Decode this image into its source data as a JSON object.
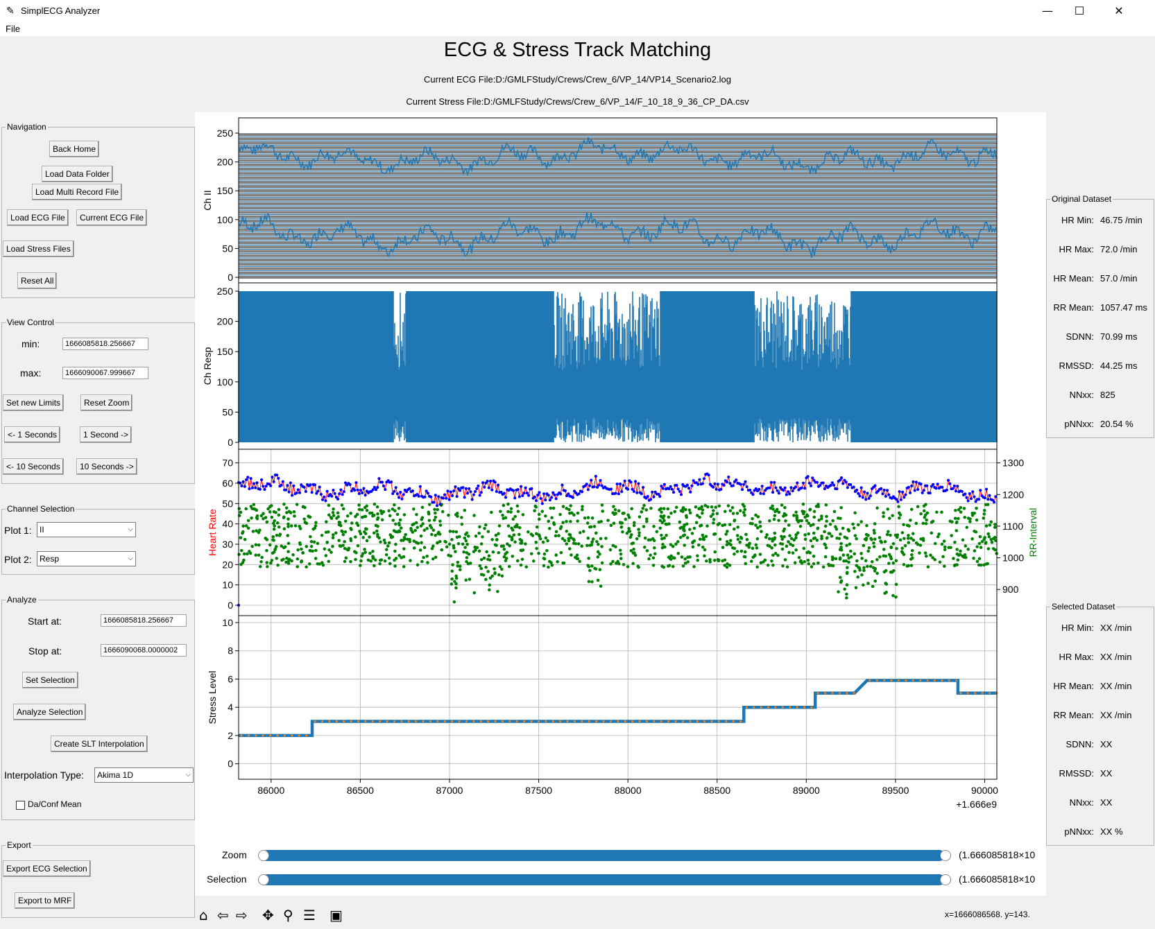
{
  "window": {
    "title": "SimplECG Analyzer",
    "minimize": "—",
    "maximize": "☐",
    "close": "✕"
  },
  "menu": {
    "file": "File"
  },
  "header": {
    "title": "ECG & Stress Track Matching",
    "ecg_file": "Current ECG File:D:/GMLFStudy/Crews/Crew_6/VP_14/VP14_Scenario2.log",
    "stress_file": "Current Stress File:D:/GMLFStudy/Crews/Crew_6/VP_14/F_10_18_9_36_CP_DA.csv"
  },
  "navigation": {
    "legend": "Navigation",
    "back_home": "Back Home",
    "load_data_folder": "Load Data Folder",
    "load_multi_record": "Load Multi Record File",
    "load_ecg": "Load ECG File",
    "current_ecg": "Current ECG File",
    "load_stress": "Load Stress Files",
    "reset_all": "Reset All"
  },
  "view_control": {
    "legend": "View Control",
    "min_label": "min:",
    "min_value": "1666085818.256667",
    "max_label": "max:",
    "max_value": "1666090067.999667",
    "set_limits": "Set new Limits",
    "reset_zoom": "Reset Zoom",
    "back_1": "<- 1 Seconds",
    "fwd_1": "1 Second ->",
    "back_10": "<- 10 Seconds",
    "fwd_10": "10 Seconds ->"
  },
  "channel_selection": {
    "legend": "Channel Selection",
    "plot1_label": "Plot 1:",
    "plot1_value": "II",
    "plot2_label": "Plot 2:",
    "plot2_value": "Resp"
  },
  "analyze": {
    "legend": "Analyze",
    "start_label": "Start at:",
    "start_value": "1666085818.256667",
    "stop_label": "Stop at:",
    "stop_value": "1666090068.0000002",
    "set_selection": "Set Selection",
    "analyze_selection": "Analyze Selection",
    "create_slt": "Create SLT Interpolation",
    "interp_label": "Interpolation Type:",
    "interp_value": "Akima 1D",
    "daconf": "Da/Conf Mean"
  },
  "export": {
    "legend": "Export",
    "export_ecg": "Export ECG Selection",
    "export_mrf": "Export to MRF"
  },
  "original_dataset": {
    "legend": "Original Dataset",
    "items": [
      {
        "label": "HR Min:",
        "value": "46.75 /min"
      },
      {
        "label": "HR Max:",
        "value": "72.0 /min"
      },
      {
        "label": "HR Mean:",
        "value": "57.0 /min"
      },
      {
        "label": "RR Mean:",
        "value": "1057.47 ms"
      },
      {
        "label": "SDNN:",
        "value": "70.99 ms"
      },
      {
        "label": "RMSSD:",
        "value": "44.25 ms"
      },
      {
        "label": "NNxx:",
        "value": "825"
      },
      {
        "label": "pNNxx:",
        "value": "20.54 %"
      }
    ]
  },
  "selected_dataset": {
    "legend": "Selected Dataset",
    "items": [
      {
        "label": "HR Min:",
        "value": "XX /min"
      },
      {
        "label": "HR Max:",
        "value": "XX /min"
      },
      {
        "label": "HR Mean:",
        "value": "XX /min"
      },
      {
        "label": "RR Mean:",
        "value": "XX /min"
      },
      {
        "label": "SDNN:",
        "value": "XX"
      },
      {
        "label": "RMSSD:",
        "value": "XX"
      },
      {
        "label": "NNxx:",
        "value": "XX"
      },
      {
        "label": "pNNxx:",
        "value": "XX %"
      }
    ]
  },
  "sliders": {
    "zoom_label": "Zoom",
    "zoom_value": "(1.666085818×10",
    "selection_label": "Selection",
    "selection_value": "(1.666085818×10"
  },
  "toolbar": {
    "coords": "x=1666086568. y=143."
  },
  "colors": {
    "blue": "#1f77b4",
    "hr_blue": "#0000ff",
    "hr_red": "#ff0000",
    "rr_green": "#008000",
    "stress_orange": "#ff7f0e"
  },
  "chart_data": [
    {
      "type": "line",
      "ylabel": "Ch II",
      "ylim": [
        0,
        250
      ],
      "yticks": [
        0,
        50,
        100,
        150,
        200,
        250
      ],
      "grid": false
    },
    {
      "type": "line",
      "ylabel": "Ch Resp",
      "ylim": [
        0,
        250
      ],
      "yticks": [
        0,
        50,
        100,
        150,
        200,
        250
      ],
      "grid": false
    },
    {
      "type": "scatter",
      "ylabel": "Heart Rate",
      "ylabel2": "RR-Interval",
      "ylim": [
        0,
        75
      ],
      "yticks": [
        0,
        10,
        20,
        30,
        40,
        50,
        60,
        70
      ],
      "y2ticks": [
        900,
        1000,
        1100,
        1200,
        1300
      ],
      "grid": true
    },
    {
      "type": "line",
      "ylabel": "Stress Level",
      "ylim": [
        -0.6,
        10.4
      ],
      "yticks": [
        0,
        2,
        4,
        6,
        8,
        10
      ],
      "xticks": [
        86000,
        86500,
        87000,
        87500,
        88000,
        88500,
        89000,
        89500,
        90000
      ],
      "x_offset_label": "+1.666e9",
      "xlim": [
        85818,
        90068
      ],
      "grid": true,
      "series": [
        {
          "points": [
            [
              85818,
              2
            ],
            [
              86230,
              2
            ],
            [
              86230,
              3
            ],
            [
              88650,
              3
            ],
            [
              88650,
              4
            ],
            [
              89050,
              4
            ],
            [
              89050,
              5
            ],
            [
              89270,
              5
            ],
            [
              89340,
              5.9
            ],
            [
              89850,
              5.9
            ],
            [
              89850,
              5
            ],
            [
              90068,
              5
            ]
          ]
        }
      ]
    }
  ]
}
